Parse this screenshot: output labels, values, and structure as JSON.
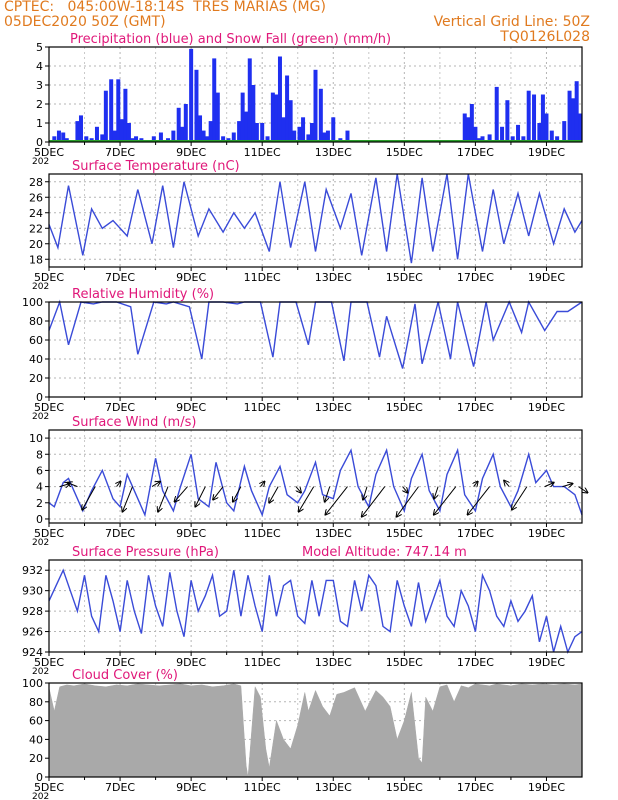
{
  "header": {
    "line1": "CPTEC:   045:00W-18:14S  TRES MARIAS (MG)",
    "line2": "05DEC2020 50Z (GMT)",
    "grid_note": "Vertical Grid Line: 50Z",
    "code": "TQ0126L028"
  },
  "colors": {
    "header": "#e07a1f",
    "title": "#e0187a",
    "line": "#3a4bd8",
    "bar": "#1f2ff0",
    "snow": "#2aa02a",
    "cloud": "#a9a9a9"
  },
  "x_axis": {
    "ticks": [
      "5DEC",
      "7DEC",
      "9DEC",
      "11DEC",
      "13DEC",
      "15DEC",
      "17DEC",
      "19DEC"
    ],
    "sub_label": "202"
  },
  "chart_data": [
    {
      "id": "precip",
      "type": "bar",
      "title": "Precipitation (blue) and Snow Fall (green) (mm/h)",
      "ylim": [
        0,
        5
      ],
      "yticks": [
        0,
        1,
        2,
        3,
        4,
        5
      ],
      "x": [
        5.15,
        5.28,
        5.4,
        5.5,
        5.58,
        5.8,
        5.9,
        6.05,
        6.2,
        6.35,
        6.5,
        6.6,
        6.75,
        6.85,
        6.95,
        7.05,
        7.15,
        7.25,
        7.35,
        7.45,
        7.6,
        7.75,
        7.95,
        8.15,
        8.35,
        8.5,
        8.65,
        8.75,
        8.85,
        9.0,
        9.15,
        9.25,
        9.35,
        9.45,
        9.55,
        9.65,
        9.75,
        9.9,
        10.05,
        10.2,
        10.35,
        10.45,
        10.55,
        10.65,
        10.75,
        10.85,
        11.0,
        11.15,
        11.3,
        11.4,
        11.5,
        11.6,
        11.7,
        11.8,
        11.9,
        12.05,
        12.15,
        12.3,
        12.4,
        12.5,
        12.65,
        12.75,
        12.85,
        13.0,
        13.2,
        13.4,
        13.6,
        16.7,
        16.8,
        16.9,
        17.0,
        17.1,
        17.2,
        17.4,
        17.6,
        17.75,
        17.9,
        18.05,
        18.2,
        18.35,
        18.5,
        18.65,
        18.8,
        18.9,
        19.0,
        19.15,
        19.3,
        19.5,
        19.65,
        19.75,
        19.85,
        19.95
      ],
      "values": [
        0.3,
        0.6,
        0.5,
        0.2,
        0.1,
        1.1,
        1.4,
        0.3,
        0.2,
        0.8,
        0.4,
        2.7,
        3.3,
        0.6,
        3.3,
        1.2,
        2.8,
        1.0,
        0.2,
        0.3,
        0.2,
        0.1,
        0.3,
        0.5,
        0.2,
        0.6,
        1.8,
        0.8,
        2.0,
        4.9,
        3.8,
        1.4,
        0.6,
        0.3,
        1.1,
        4.4,
        2.6,
        0.3,
        0.2,
        0.5,
        1.1,
        2.6,
        1.6,
        4.4,
        3.0,
        1.0,
        1.0,
        0.3,
        2.6,
        2.5,
        4.5,
        1.3,
        3.5,
        2.2,
        0.6,
        0.8,
        1.3,
        0.4,
        1.0,
        3.8,
        2.8,
        0.5,
        0.6,
        1.3,
        0.2,
        0.6,
        0.1,
        1.5,
        1.3,
        2.0,
        0.8,
        0.2,
        0.3,
        0.4,
        2.9,
        0.8,
        2.2,
        0.3,
        0.9,
        0.3,
        2.7,
        2.5,
        1.0,
        2.5,
        1.5,
        0.6,
        0.3,
        1.1,
        2.7,
        2.3,
        3.2,
        1.5
      ],
      "snow": 0
    },
    {
      "id": "temp",
      "type": "line",
      "title": "Surface Temperature (nC)",
      "ylim": [
        17,
        29
      ],
      "yticks": [
        18,
        20,
        22,
        24,
        26,
        28
      ],
      "x": [
        5.0,
        5.25,
        5.55,
        5.95,
        6.2,
        6.5,
        6.8,
        7.2,
        7.5,
        7.9,
        8.2,
        8.5,
        8.8,
        9.2,
        9.5,
        9.9,
        10.2,
        10.5,
        10.8,
        11.2,
        11.5,
        11.8,
        12.2,
        12.5,
        12.8,
        13.2,
        13.5,
        13.8,
        14.2,
        14.5,
        14.8,
        15.2,
        15.5,
        15.8,
        16.2,
        16.5,
        16.8,
        17.2,
        17.5,
        17.8,
        18.2,
        18.5,
        18.8,
        19.2,
        19.5,
        19.8,
        20.0
      ],
      "y": [
        22.5,
        19.5,
        27.5,
        18.5,
        24.5,
        22.0,
        23.0,
        21.0,
        27.0,
        20.0,
        27.5,
        19.5,
        28.0,
        21.0,
        24.5,
        21.5,
        24.0,
        22.0,
        24.0,
        19.0,
        28.0,
        19.5,
        28.0,
        19.0,
        27.0,
        22.0,
        26.5,
        18.5,
        28.5,
        19.0,
        29.0,
        17.5,
        28.5,
        19.0,
        29.0,
        18.0,
        29.0,
        19.0,
        27.0,
        20.0,
        26.5,
        21.0,
        26.5,
        20.0,
        24.5,
        21.5,
        23.0
      ]
    },
    {
      "id": "rh",
      "type": "line",
      "title": "Relative Humidity (%)",
      "ylim": [
        0,
        100
      ],
      "yticks": [
        0,
        20,
        40,
        60,
        80,
        100
      ],
      "x": [
        5.0,
        5.3,
        5.55,
        5.9,
        6.25,
        6.5,
        6.9,
        7.3,
        7.5,
        7.95,
        8.3,
        8.5,
        8.95,
        9.3,
        9.5,
        9.9,
        10.3,
        10.5,
        10.95,
        11.3,
        11.5,
        11.95,
        12.3,
        12.5,
        12.95,
        13.3,
        13.5,
        13.95,
        14.3,
        14.5,
        14.95,
        15.3,
        15.5,
        15.95,
        16.3,
        16.5,
        16.95,
        17.3,
        17.5,
        17.95,
        18.3,
        18.5,
        18.95,
        19.3,
        19.6,
        20.0
      ],
      "y": [
        70,
        100,
        55,
        100,
        98,
        100,
        100,
        95,
        45,
        100,
        98,
        100,
        95,
        40,
        100,
        100,
        98,
        100,
        100,
        42,
        100,
        100,
        55,
        100,
        100,
        38,
        100,
        100,
        42,
        85,
        30,
        98,
        35,
        100,
        40,
        100,
        32,
        100,
        60,
        100,
        68,
        100,
        70,
        90,
        90,
        100
      ]
    },
    {
      "id": "wind",
      "type": "line",
      "title": "Surface Wind (m/s)",
      "ylim": [
        -0.5,
        11
      ],
      "yticks": [
        0,
        2,
        4,
        6,
        8,
        10
      ],
      "x": [
        5.0,
        5.15,
        5.4,
        5.55,
        5.7,
        5.95,
        6.2,
        6.5,
        6.8,
        7.0,
        7.2,
        7.5,
        7.7,
        8.0,
        8.2,
        8.5,
        8.7,
        9.0,
        9.2,
        9.5,
        9.7,
        10.0,
        10.2,
        10.5,
        10.7,
        11.0,
        11.2,
        11.5,
        11.7,
        12.0,
        12.2,
        12.5,
        12.7,
        13.0,
        13.2,
        13.5,
        13.7,
        14.0,
        14.2,
        14.5,
        14.7,
        15.0,
        15.2,
        15.5,
        15.7,
        16.0,
        16.2,
        16.5,
        16.7,
        17.0,
        17.2,
        17.5,
        17.7,
        18.0,
        18.2,
        18.5,
        18.7,
        19.0,
        19.2,
        19.5,
        19.8,
        20.0
      ],
      "y": [
        2,
        1.5,
        4.5,
        5.0,
        3.5,
        1.0,
        3.5,
        6.0,
        2.5,
        1.5,
        5.5,
        2.5,
        0.5,
        7.5,
        3.5,
        1.0,
        4.0,
        8.0,
        2.5,
        1.5,
        7.0,
        2.0,
        1.0,
        6.5,
        3.5,
        0.5,
        4.0,
        6.5,
        3.0,
        2.0,
        3.5,
        7.0,
        3.0,
        2.5,
        6.0,
        8.5,
        4.0,
        1.5,
        5.5,
        8.5,
        4.0,
        1.0,
        5.0,
        8.0,
        3.5,
        1.0,
        5.5,
        8.5,
        3.0,
        1.0,
        5.0,
        8.0,
        4.0,
        1.5,
        3.5,
        8.0,
        4.5,
        6.0,
        4.0,
        4.0,
        3.0,
        0.5
      ],
      "arrows": [
        {
          "x": 5.3,
          "u": 1,
          "v": 0.3
        },
        {
          "x": 5.8,
          "u": -1,
          "v": 0.4
        },
        {
          "x": 6.3,
          "u": -1.3,
          "v": -2.3
        },
        {
          "x": 6.9,
          "u": 0.4,
          "v": 0.5
        },
        {
          "x": 7.35,
          "u": -1,
          "v": -2.5
        },
        {
          "x": 7.9,
          "u": 0.8,
          "v": 0.5
        },
        {
          "x": 8.35,
          "u": -1,
          "v": -2.5
        },
        {
          "x": 8.9,
          "u": -1.3,
          "v": -1.5
        },
        {
          "x": 9.4,
          "u": -1,
          "v": -2
        },
        {
          "x": 9.9,
          "u": -1,
          "v": -1.3
        },
        {
          "x": 10.4,
          "u": -0.8,
          "v": -1.5
        },
        {
          "x": 10.95,
          "u": 0.4,
          "v": 0.5
        },
        {
          "x": 11.45,
          "u": -0.9,
          "v": -1.6
        },
        {
          "x": 11.95,
          "u": 0.5,
          "v": -0.6
        },
        {
          "x": 12.45,
          "u": -1.5,
          "v": -2.5
        },
        {
          "x": 12.9,
          "u": -0.5,
          "v": -1.5
        },
        {
          "x": 13.4,
          "u": -2.2,
          "v": -2.8
        },
        {
          "x": 13.95,
          "u": -0.4,
          "v": -1.3
        },
        {
          "x": 14.45,
          "u": -2.3,
          "v": -3
        },
        {
          "x": 14.95,
          "u": 0.5,
          "v": -0.6
        },
        {
          "x": 15.4,
          "u": -2.2,
          "v": -3
        },
        {
          "x": 15.95,
          "u": -0.4,
          "v": -1.2
        },
        {
          "x": 16.45,
          "u": -2.2,
          "v": -2.8
        },
        {
          "x": 16.95,
          "u": 0.4,
          "v": 0.5
        },
        {
          "x": 17.4,
          "u": -2.2,
          "v": -2.8
        },
        {
          "x": 17.95,
          "u": -0.5,
          "v": 0.6
        },
        {
          "x": 18.45,
          "u": -1.5,
          "v": -2.3
        },
        {
          "x": 18.95,
          "u": 0.9,
          "v": 0.4
        },
        {
          "x": 19.45,
          "u": 1,
          "v": 0.3
        },
        {
          "x": 19.9,
          "u": 0.9,
          "v": -0.6
        }
      ]
    },
    {
      "id": "pressure",
      "type": "line",
      "title": "Surface Pressure (hPa)",
      "model_altitude": "Model Altitude: 747.14 m",
      "ylim": [
        924,
        933
      ],
      "yticks": [
        924,
        926,
        928,
        930,
        932
      ],
      "x": [
        5.0,
        5.2,
        5.4,
        5.6,
        5.8,
        6.0,
        6.2,
        6.4,
        6.6,
        6.8,
        7.0,
        7.2,
        7.4,
        7.6,
        7.8,
        8.0,
        8.2,
        8.4,
        8.6,
        8.8,
        9.0,
        9.2,
        9.4,
        9.6,
        9.8,
        10.0,
        10.2,
        10.4,
        10.6,
        10.8,
        11.0,
        11.2,
        11.4,
        11.6,
        11.8,
        12.0,
        12.2,
        12.4,
        12.6,
        12.8,
        13.0,
        13.2,
        13.4,
        13.6,
        13.8,
        14.0,
        14.2,
        14.4,
        14.6,
        14.8,
        15.0,
        15.2,
        15.4,
        15.6,
        15.8,
        16.0,
        16.2,
        16.4,
        16.6,
        16.8,
        17.0,
        17.2,
        17.4,
        17.6,
        17.8,
        18.0,
        18.2,
        18.4,
        18.6,
        18.8,
        19.0,
        19.2,
        19.4,
        19.6,
        19.8,
        20.0
      ],
      "y": [
        929.0,
        930.5,
        932.0,
        930.0,
        928.0,
        931.5,
        927.5,
        926.0,
        931.5,
        929.0,
        926.0,
        931.0,
        928.0,
        925.8,
        931.5,
        928.5,
        926.5,
        931.8,
        928.0,
        925.5,
        931.0,
        928.0,
        929.5,
        931.5,
        927.5,
        928.0,
        932.0,
        927.5,
        931.5,
        928.5,
        926.0,
        931.5,
        927.5,
        930.5,
        931.0,
        927.5,
        926.8,
        931.0,
        927.5,
        931.0,
        931.0,
        927.0,
        926.5,
        931.0,
        928.0,
        931.5,
        930.5,
        926.5,
        926.0,
        931.0,
        928.5,
        926.5,
        930.8,
        927.0,
        929.0,
        931.0,
        927.5,
        926.5,
        930.0,
        928.5,
        926.0,
        931.5,
        930.0,
        927.5,
        926.5,
        929.0,
        927.0,
        928.0,
        929.5,
        925.0,
        927.5,
        924.0,
        926.5,
        924.0,
        925.5,
        926.0
      ]
    },
    {
      "id": "cloud",
      "type": "area",
      "title": "Cloud Cover (%)",
      "ylim": [
        0,
        100
      ],
      "yticks": [
        0,
        20,
        40,
        60,
        80,
        100
      ],
      "x": [
        5.0,
        5.15,
        5.3,
        5.5,
        5.7,
        6.0,
        6.3,
        6.6,
        6.9,
        7.2,
        7.5,
        7.8,
        8.1,
        8.4,
        8.7,
        9.0,
        9.3,
        9.6,
        9.9,
        10.2,
        10.4,
        10.55,
        10.6,
        10.8,
        10.95,
        11.1,
        11.2,
        11.4,
        11.6,
        11.8,
        12.0,
        12.2,
        12.3,
        12.5,
        12.7,
        12.9,
        13.1,
        13.3,
        13.6,
        13.9,
        14.2,
        14.4,
        14.6,
        14.8,
        15.0,
        15.2,
        15.4,
        15.5,
        15.6,
        15.8,
        16.0,
        16.2,
        16.4,
        16.6,
        16.8,
        17.0,
        17.2,
        17.4,
        17.6,
        17.8,
        18.0,
        18.3,
        18.6,
        18.9,
        19.2,
        19.5,
        19.8,
        20.0
      ],
      "y": [
        95,
        70,
        96,
        98,
        97,
        99,
        97,
        96,
        98,
        97,
        99,
        98,
        97,
        98,
        99,
        97,
        98,
        96,
        97,
        99,
        97,
        12,
        0,
        96,
        85,
        30,
        10,
        60,
        40,
        30,
        55,
        90,
        70,
        92,
        75,
        65,
        88,
        90,
        95,
        70,
        92,
        85,
        75,
        40,
        60,
        90,
        20,
        15,
        85,
        70,
        96,
        98,
        80,
        97,
        95,
        99,
        98,
        97,
        99,
        98,
        97,
        99,
        98,
        99,
        98,
        99,
        98,
        99
      ]
    }
  ]
}
